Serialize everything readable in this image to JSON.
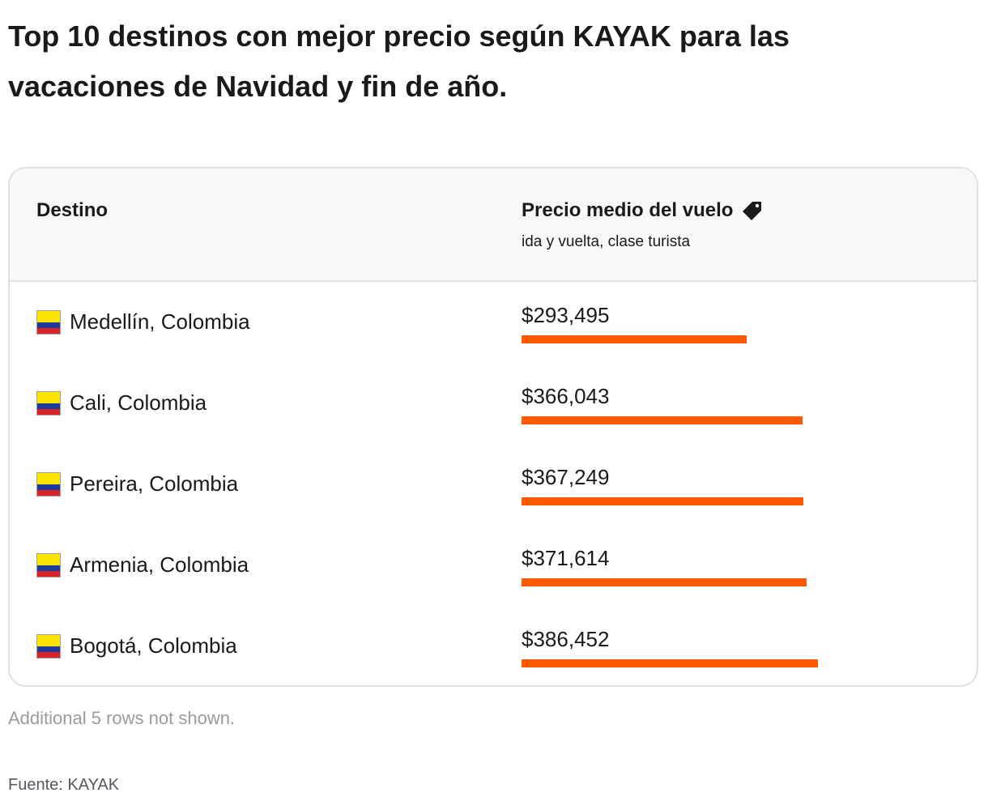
{
  "title": "Top 10 destinos con mejor precio según KAYAK para las vacaciones de Navidad y fin de año.",
  "table": {
    "col_destination": "Destino",
    "col_price": "Precio medio del vuelo",
    "col_price_sub": "ida y vuelta, clase turista",
    "price_icon": "tag-icon",
    "flag_icon": "colombia-flag-icon",
    "flag_colors": {
      "yellow": "#fce300",
      "blue": "#1b3c9c",
      "red": "#d8232a"
    },
    "bar_color": "#ff5a00"
  },
  "chart_data": {
    "type": "bar",
    "categories": [
      "Medellín, Colombia",
      "Cali, Colombia",
      "Pereira, Colombia",
      "Armenia, Colombia",
      "Bogotá, Colombia"
    ],
    "series": [
      {
        "values": [
          293495,
          366043,
          367249,
          371614,
          386452
        ],
        "labels": [
          "$293,495",
          "$366,043",
          "$367,249",
          "$371,614",
          "$386,452"
        ]
      }
    ],
    "title": "",
    "xlabel": "",
    "ylabel": "Precio medio del vuelo",
    "orientation": "horizontal",
    "grid": false,
    "legend": "none"
  },
  "note": "Additional 5 rows not shown.",
  "source": "Fuente: KAYAK"
}
